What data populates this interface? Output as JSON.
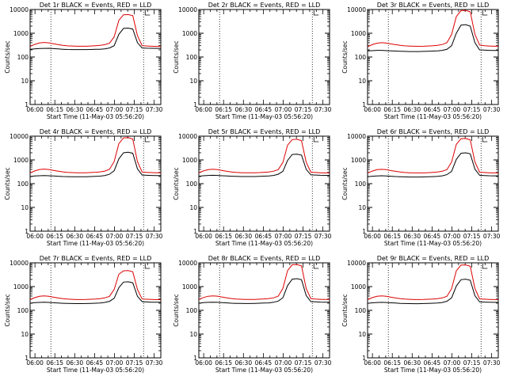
{
  "chart_data": [
    {
      "type": "line",
      "title": "Det 1r BLACK = Events, RED = LLD",
      "has_data": true,
      "black": [
        210,
        220,
        228,
        230,
        232,
        225,
        218,
        212,
        208,
        206,
        205,
        205,
        206,
        208,
        210,
        212,
        220,
        240,
        300,
        900,
        1600,
        1650,
        1500,
        400,
        240,
        235,
        232,
        230,
        230
      ],
      "red": [
        280,
        340,
        390,
        410,
        395,
        360,
        330,
        310,
        295,
        290,
        285,
        283,
        285,
        290,
        300,
        310,
        330,
        380,
        700,
        3500,
        6000,
        6100,
        5500,
        800,
        300,
        290,
        285,
        280,
        280
      ]
    },
    {
      "type": "line",
      "title": "Det 2r BLACK = Events, RED = LLD",
      "has_data": false,
      "black": [],
      "red": []
    },
    {
      "type": "line",
      "title": "Det 3r BLACK = Events, RED = LLD",
      "has_data": true,
      "black": [
        180,
        185,
        190,
        190,
        185,
        180,
        178,
        175,
        172,
        170,
        170,
        170,
        172,
        175,
        178,
        182,
        190,
        210,
        300,
        1000,
        2200,
        2300,
        2000,
        400,
        200,
        195,
        190,
        188,
        188
      ],
      "red": [
        270,
        330,
        380,
        400,
        385,
        355,
        330,
        310,
        295,
        288,
        283,
        282,
        284,
        290,
        298,
        310,
        335,
        400,
        900,
        5000,
        9000,
        9200,
        8000,
        900,
        320,
        300,
        290,
        285,
        285
      ]
    },
    {
      "type": "line",
      "title": "Det 4r BLACK = Events, RED = LLD",
      "has_data": true,
      "black": [
        200,
        210,
        215,
        218,
        215,
        210,
        205,
        200,
        198,
        196,
        195,
        195,
        197,
        200,
        203,
        208,
        220,
        250,
        350,
        1100,
        2000,
        2100,
        1900,
        420,
        230,
        225,
        222,
        220,
        220
      ],
      "red": [
        285,
        345,
        395,
        410,
        395,
        362,
        335,
        315,
        300,
        293,
        288,
        287,
        289,
        295,
        303,
        315,
        340,
        400,
        850,
        4800,
        8500,
        8700,
        7600,
        850,
        310,
        300,
        292,
        288,
        288
      ]
    },
    {
      "type": "line",
      "title": "Det 5r BLACK = Events, RED = LLD",
      "has_data": true,
      "black": [
        205,
        215,
        222,
        225,
        222,
        216,
        210,
        205,
        202,
        200,
        199,
        199,
        200,
        203,
        207,
        211,
        222,
        250,
        330,
        950,
        1700,
        1750,
        1600,
        400,
        235,
        230,
        226,
        224,
        224
      ],
      "red": [
        290,
        345,
        390,
        405,
        390,
        358,
        332,
        312,
        298,
        291,
        287,
        286,
        288,
        293,
        301,
        312,
        335,
        390,
        780,
        4200,
        7200,
        7400,
        6500,
        800,
        305,
        295,
        288,
        284,
        284
      ]
    },
    {
      "type": "line",
      "title": "Det 6r BLACK = Events, RED = LLD",
      "has_data": true,
      "black": [
        195,
        205,
        212,
        215,
        212,
        206,
        200,
        196,
        193,
        191,
        190,
        190,
        192,
        195,
        198,
        202,
        214,
        240,
        330,
        1050,
        1900,
        2000,
        1800,
        410,
        225,
        220,
        216,
        214,
        214
      ],
      "red": [
        280,
        340,
        388,
        402,
        388,
        356,
        330,
        310,
        296,
        289,
        284,
        283,
        285,
        291,
        299,
        310,
        333,
        392,
        820,
        4500,
        7800,
        8000,
        7000,
        820,
        305,
        296,
        289,
        285,
        285
      ]
    },
    {
      "type": "line",
      "title": "Det 7r BLACK = Events, RED = LLD",
      "has_data": true,
      "black": [
        200,
        210,
        216,
        218,
        215,
        209,
        203,
        198,
        195,
        193,
        192,
        192,
        194,
        197,
        200,
        204,
        215,
        240,
        320,
        900,
        1550,
        1600,
        1450,
        390,
        230,
        225,
        221,
        219,
        219
      ],
      "red": [
        285,
        342,
        390,
        404,
        390,
        357,
        331,
        311,
        297,
        290,
        285,
        284,
        286,
        292,
        300,
        311,
        333,
        388,
        760,
        3300,
        4600,
        4700,
        4200,
        760,
        300,
        292,
        286,
        282,
        282
      ]
    },
    {
      "type": "line",
      "title": "Det 8r BLACK = Events, RED = LLD",
      "has_data": true,
      "black": [
        200,
        210,
        217,
        220,
        217,
        211,
        205,
        200,
        197,
        195,
        194,
        194,
        196,
        199,
        202,
        206,
        218,
        245,
        340,
        1100,
        2050,
        2150,
        1950,
        420,
        232,
        227,
        223,
        221,
        221
      ],
      "red": [
        288,
        346,
        393,
        408,
        394,
        360,
        334,
        314,
        300,
        292,
        287,
        286,
        288,
        294,
        302,
        313,
        336,
        395,
        840,
        4700,
        8300,
        8500,
        7400,
        840,
        308,
        298,
        290,
        286,
        286
      ]
    },
    {
      "type": "line",
      "title": "Det 9r BLACK = Events, RED = LLD",
      "has_data": true,
      "black": [
        198,
        208,
        214,
        217,
        214,
        208,
        202,
        197,
        194,
        192,
        191,
        191,
        193,
        196,
        199,
        203,
        214,
        242,
        335,
        1050,
        1950,
        2050,
        1850,
        415,
        228,
        223,
        219,
        217,
        217
      ],
      "red": [
        284,
        342,
        390,
        405,
        391,
        358,
        332,
        312,
        298,
        290,
        285,
        284,
        286,
        292,
        300,
        311,
        334,
        392,
        820,
        4600,
        8000,
        8200,
        7200,
        830,
        305,
        296,
        289,
        285,
        285
      ]
    }
  ],
  "shared": {
    "x_tick_labels": [
      "06:00",
      "06:15",
      "06:30",
      "06:45",
      "07:00",
      "07:15",
      "07:30"
    ],
    "y_tick_labels": [
      "1",
      "10",
      "100",
      "1000",
      "10000"
    ],
    "ylabel": "Counts/sec",
    "xlabel": "Start Time (11-May-03 05:56:20)",
    "x_start_minutes": 356.33,
    "x_end_minutes": 455,
    "vlines_minutes": [
      372,
      442
    ],
    "y_scale": "log",
    "ylim": [
      1,
      10000
    ],
    "colors": {
      "events": "#000000",
      "lld": "#dd0000",
      "axes": "#000000"
    }
  }
}
